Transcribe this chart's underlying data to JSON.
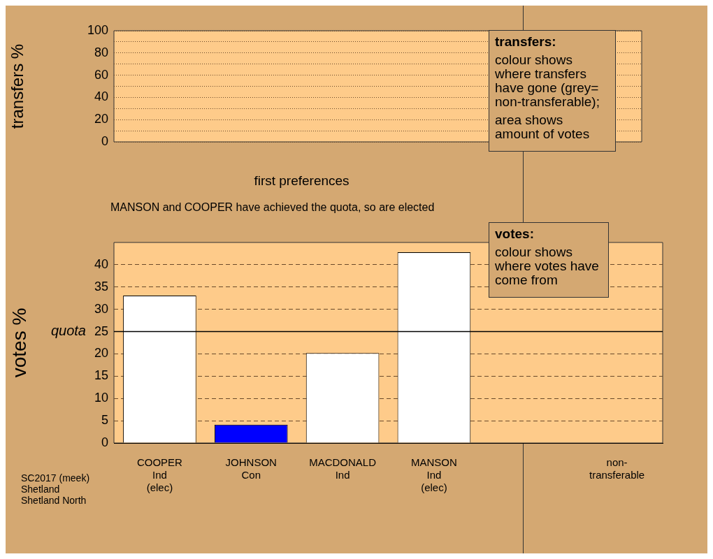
{
  "chart_data": [
    {
      "type": "bar",
      "xlabel": "first preferences",
      "ylabel": "transfers %",
      "categories": [
        null
      ],
      "values": [
        null
      ],
      "ylim": [
        0,
        100
      ],
      "yticks": [
        0,
        {
          "value": 10,
          "label": null
        },
        20,
        {
          "value": 30,
          "label": null
        },
        40,
        {
          "value": 50,
          "label": null
        },
        60,
        {
          "value": 70,
          "label": null
        },
        80,
        {
          "value": 90,
          "label": null
        },
        100
      ],
      "grid": "y",
      "tick_labels": "y",
      "annotations": [
        "transfers:",
        "colour shows where transfers have gone (grey= non-transferable);",
        "area shows amount of votes"
      ]
    },
    {
      "type": "bar",
      "title": "MANSON and COOPER have achieved the quota, so are elected",
      "ylabel": "votes %",
      "categories": [
        "COOPER\nInd\n(elec)",
        "JOHNSON\nCon",
        "MACDONALD\nInd",
        "MANSON\nInd\n(elec)",
        null,
        "non-\ntransferable"
      ],
      "values": [
        33.1,
        4.1,
        20.2,
        42.8,
        null,
        null
      ],
      "colors": [
        "#ffffff",
        "#0000ff",
        "#ffffff",
        "#ffffff",
        "#ffffff",
        "#ffffff"
      ],
      "ylim": [
        0,
        45
      ],
      "yticks": [
        0,
        5,
        10,
        15,
        20,
        25,
        30,
        35,
        40
      ],
      "grid": "y",
      "ref_lines": [
        {
          "axis": "y",
          "value": 25,
          "label": "quota",
          "color": "#000000"
        }
      ],
      "annotations": [
        "votes:",
        "colour shows where votes have come from",
        "SC2017 (meek)\nShetland\nShetland North"
      ]
    }
  ]
}
